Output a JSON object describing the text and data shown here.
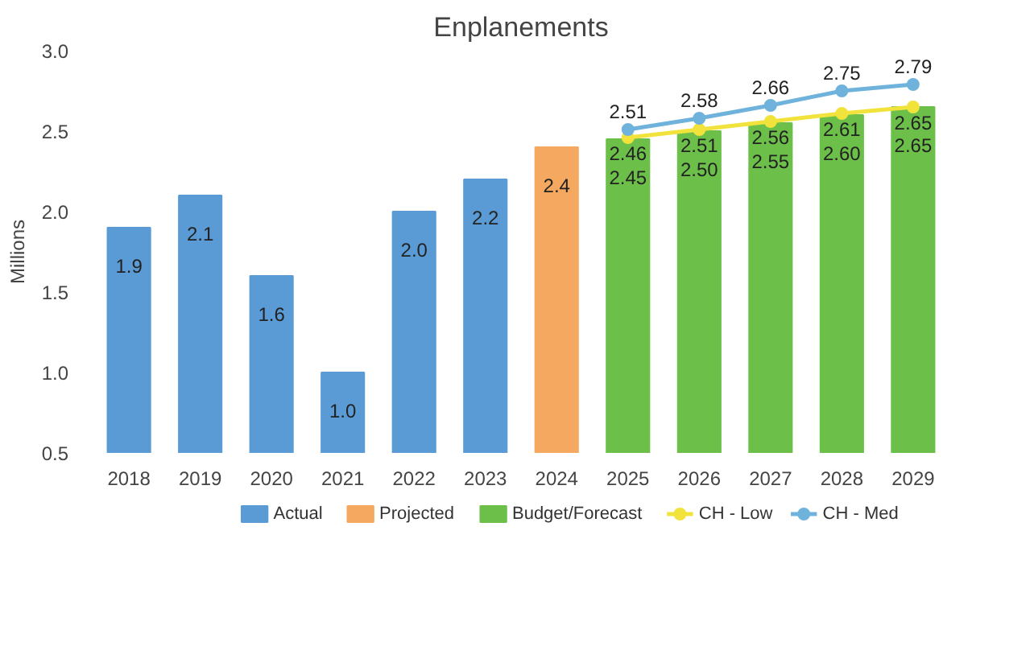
{
  "chart_data": {
    "type": "bar",
    "title": "Enplanements",
    "ylabel": "Millions",
    "categories": [
      "2018",
      "2019",
      "2020",
      "2021",
      "2022",
      "2023",
      "2024",
      "2025",
      "2026",
      "2027",
      "2028",
      "2029"
    ],
    "ylim": [
      0.5,
      3.0
    ],
    "yticks": [
      0.5,
      {
        "value": 1.0,
        "label": "1.0"
      },
      1.5,
      {
        "value": 2.0,
        "label": "2.0"
      },
      2.5,
      {
        "value": 3.0,
        "label": "3.0"
      }
    ],
    "grid": false,
    "legend": "bottom",
    "marker": "circle",
    "series": [
      {
        "name": "Actual",
        "color": "#5b9bd5",
        "values": [
          1.9,
          2.1,
          1.6,
          1.0,
          2.0,
          2.2,
          null,
          null,
          null,
          null,
          null,
          null
        ],
        "value_labels": [
          "1.9",
          "2.1",
          "1.6",
          "1.0",
          "2.0",
          "2.2",
          null,
          null,
          null,
          null,
          null,
          null
        ]
      },
      {
        "name": "Projected",
        "color": "#f4a860",
        "values": [
          null,
          null,
          null,
          null,
          null,
          null,
          2.4,
          null,
          null,
          null,
          null,
          null
        ],
        "value_labels": [
          null,
          null,
          null,
          null,
          null,
          null,
          "2.4",
          null,
          null,
          null,
          null,
          null
        ]
      },
      {
        "name": "Budget/Forecast",
        "color": "#6cc04a",
        "values": [
          null,
          null,
          null,
          null,
          null,
          null,
          null,
          2.45,
          2.5,
          2.55,
          2.6,
          2.65
        ],
        "value_labels": [
          null,
          null,
          null,
          null,
          null,
          null,
          null,
          "2.45",
          "2.50",
          "2.55",
          "2.60",
          "2.65"
        ]
      },
      {
        "name": "CH - Low",
        "type": "line",
        "color": "#f2e33c",
        "values": [
          null,
          null,
          null,
          null,
          null,
          null,
          null,
          2.46,
          2.51,
          2.56,
          2.61,
          2.65
        ],
        "value_labels": [
          null,
          null,
          null,
          null,
          null,
          null,
          null,
          "2.46",
          "2.51",
          "2.56",
          "2.61",
          "2.65"
        ]
      },
      {
        "name": "CH - Med",
        "type": "line",
        "color": "#6fb3dc",
        "values": [
          null,
          null,
          null,
          null,
          null,
          null,
          null,
          2.51,
          2.58,
          2.66,
          2.75,
          2.79
        ],
        "value_labels": [
          null,
          null,
          null,
          null,
          null,
          null,
          null,
          "2.51",
          "2.58",
          "2.66",
          "2.75",
          "2.79"
        ]
      }
    ]
  }
}
